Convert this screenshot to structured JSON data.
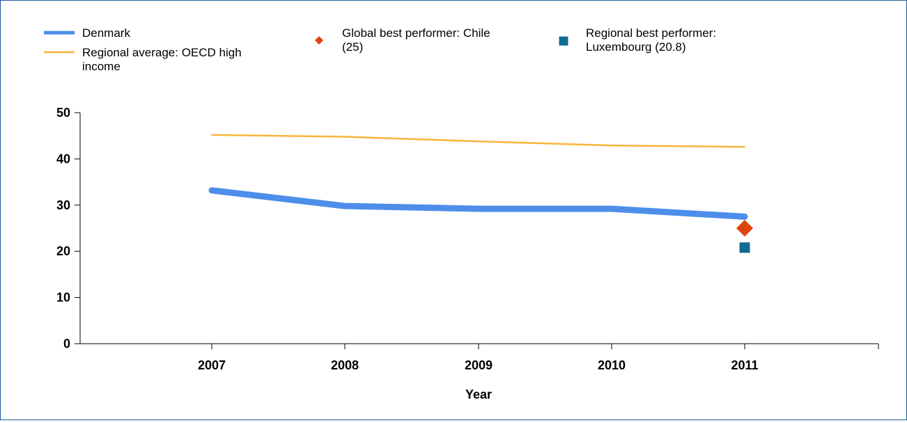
{
  "chart_data": {
    "type": "line",
    "title": "",
    "xlabel": "Year",
    "ylabel": "",
    "ylim": [
      0,
      50
    ],
    "y_ticks": [
      "0",
      "10",
      "20",
      "30",
      "40",
      "50"
    ],
    "categories": [
      "2007",
      "2008",
      "2009",
      "2010",
      "2011"
    ],
    "series": [
      {
        "name": "Denmark",
        "values": [
          33.2,
          29.8,
          29.2,
          29.2,
          27.5
        ],
        "color": "#4d8eea"
      },
      {
        "name": "Regional average: OECD high income",
        "values": [
          45.2,
          44.8,
          43.8,
          42.9,
          42.6
        ],
        "color": "#f9b43a"
      }
    ],
    "markers": [
      {
        "name": "Global best performer: Chile (25)",
        "category": "2011",
        "value": 25,
        "shape": "diamond",
        "color": "#e0440e"
      },
      {
        "name": "Regional best performer: Luxembourg (20.8)",
        "category": "2011",
        "value": 20.8,
        "shape": "square",
        "color": "#106c94"
      }
    ],
    "legend": {
      "placement": "top",
      "entries": [
        {
          "lines": [
            "Denmark"
          ],
          "symbol": "thick-line",
          "color": "#4d8eea"
        },
        {
          "lines": [
            "Regional average: OECD high",
            "income"
          ],
          "symbol": "line",
          "color": "#f9b43a"
        },
        {
          "lines": [
            "Global best performer: Chile",
            "(25)"
          ],
          "symbol": "diamond",
          "color": "#e0440e"
        },
        {
          "lines": [
            "Regional best performer:",
            "Luxembourg (20.8)"
          ],
          "symbol": "square",
          "color": "#106c94"
        }
      ]
    },
    "grid": false
  }
}
